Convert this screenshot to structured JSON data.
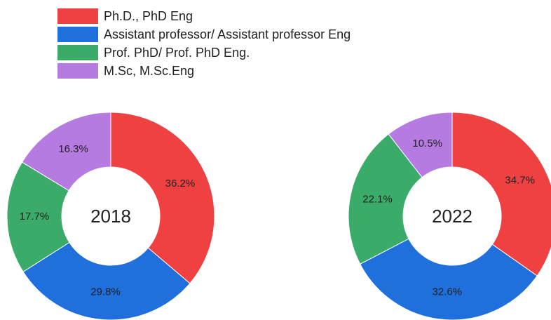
{
  "chart_data": [
    {
      "type": "pie",
      "donut": true,
      "title": "2018",
      "categories": [
        "Ph.D., PhD Eng",
        "Assistant professor/ Assistant professor Eng",
        "Prof. PhD/ Prof. PhD Eng.",
        "M.Sc, M.Sc.Eng"
      ],
      "values": [
        36.2,
        29.8,
        17.7,
        16.3
      ],
      "value_labels": [
        "36.2%",
        "29.8%",
        "17.7%",
        "16.3%"
      ],
      "colors": [
        "#ef4141",
        "#1f6fdc",
        "#3aab68",
        "#b57be0"
      ]
    },
    {
      "type": "pie",
      "donut": true,
      "title": "2022",
      "categories": [
        "Ph.D., PhD Eng",
        "Assistant professor/ Assistant professor Eng",
        "Prof. PhD/ Prof. PhD Eng.",
        "M.Sc, M.Sc.Eng"
      ],
      "values": [
        34.7,
        32.6,
        22.1,
        10.5
      ],
      "value_labels": [
        "34.7%",
        "32.6%",
        "22.1%",
        "10.5%"
      ],
      "colors": [
        "#ef4141",
        "#1f6fdc",
        "#3aab68",
        "#b57be0"
      ]
    }
  ]
}
